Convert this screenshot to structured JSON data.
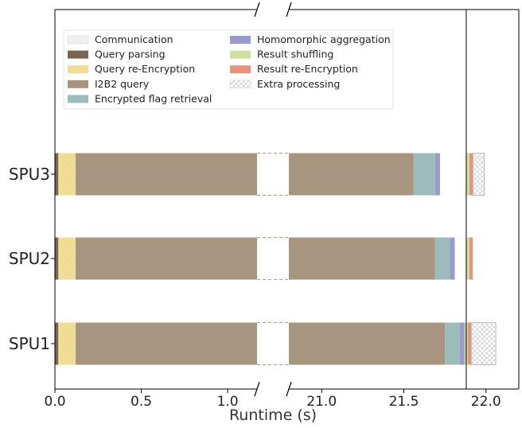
{
  "chart_data": {
    "type": "bar",
    "orientation": "horizontal-stacked",
    "broken_x_axis": true,
    "xlabel": "Runtime (s)",
    "xlim_segments": [
      [
        0.0,
        1.17
      ],
      [
        20.8,
        22.2
      ]
    ],
    "xticks": [
      0.0,
      0.5,
      1.0,
      21.0,
      21.5,
      22.0
    ],
    "xtick_labels": [
      "0.0",
      "0.5",
      "1.0",
      "21.0",
      "21.5",
      "22.0"
    ],
    "vline_at": 21.88,
    "categories": [
      "SPU3",
      "SPU2",
      "SPU1"
    ],
    "legend": {
      "placement": "top-left",
      "columns": 2,
      "entries": [
        "Communication",
        "Query parsing",
        "Query re-Encryption",
        "I2B2 query",
        "Encrypted flag retrieval",
        "Homomorphic aggregation",
        "Result shuffling",
        "Result re-Encryption",
        "Extra processing"
      ]
    },
    "component_styles": {
      "Communication": {
        "color": "#f0f0f0",
        "pattern": "grid"
      },
      "Query parsing": {
        "color": "#7a6350"
      },
      "Query re-Encryption": {
        "color": "#f5e4a0",
        "pattern": "diag"
      },
      "I2B2 query": {
        "color": "#a89580"
      },
      "Encrypted flag retrieval": {
        "color": "#9cbcbc"
      },
      "Homomorphic aggregation": {
        "color": "#9a9acc"
      },
      "Result shuffling": {
        "color": "#cde0a0"
      },
      "Result re-Encryption": {
        "color": "#e8947c"
      },
      "Extra processing": {
        "color": "#ffffff",
        "pattern": "cross"
      }
    },
    "series": [
      {
        "category": "SPU3",
        "segments": [
          {
            "component": "Query parsing",
            "start": 0.0,
            "end": 0.02
          },
          {
            "component": "Query re-Encryption",
            "start": 0.02,
            "end": 0.12
          },
          {
            "component": "I2B2 query",
            "start": 0.12,
            "end": 21.56
          },
          {
            "component": "Encrypted flag retrieval",
            "start": 21.56,
            "end": 21.69
          },
          {
            "component": "Homomorphic aggregation",
            "start": 21.69,
            "end": 21.72
          },
          {
            "component": "Result shuffling",
            "start": 21.88,
            "end": 21.9
          },
          {
            "component": "Result re-Encryption",
            "start": 21.9,
            "end": 21.92
          },
          {
            "component": "Extra processing",
            "start": 21.92,
            "end": 21.99
          }
        ]
      },
      {
        "category": "SPU2",
        "segments": [
          {
            "component": "Query parsing",
            "start": 0.0,
            "end": 0.02
          },
          {
            "component": "Query re-Encryption",
            "start": 0.02,
            "end": 0.12
          },
          {
            "component": "I2B2 query",
            "start": 0.12,
            "end": 21.69
          },
          {
            "component": "Encrypted flag retrieval",
            "start": 21.69,
            "end": 21.78
          },
          {
            "component": "Homomorphic aggregation",
            "start": 21.78,
            "end": 21.81
          },
          {
            "component": "Result shuffling",
            "start": 21.88,
            "end": 21.9
          },
          {
            "component": "Result re-Encryption",
            "start": 21.9,
            "end": 21.92
          }
        ]
      },
      {
        "category": "SPU1",
        "segments": [
          {
            "component": "Query parsing",
            "start": 0.0,
            "end": 0.02
          },
          {
            "component": "Query re-Encryption",
            "start": 0.02,
            "end": 0.12
          },
          {
            "component": "I2B2 query",
            "start": 0.12,
            "end": 21.75
          },
          {
            "component": "Encrypted flag retrieval",
            "start": 21.75,
            "end": 21.84
          },
          {
            "component": "Homomorphic aggregation",
            "start": 21.84,
            "end": 21.87
          },
          {
            "component": "Result shuffling",
            "start": 21.87,
            "end": 21.89
          },
          {
            "component": "Result re-Encryption",
            "start": 21.89,
            "end": 21.91
          },
          {
            "component": "Extra processing",
            "start": 21.91,
            "end": 22.06
          }
        ]
      }
    ]
  }
}
